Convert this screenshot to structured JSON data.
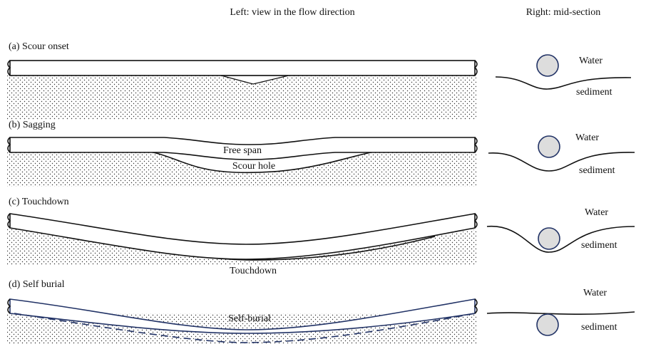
{
  "headers": {
    "left": "Left: view in the flow direction",
    "right": "Right: mid-section"
  },
  "panels": [
    {
      "label": "(a) Scour onset",
      "water": "Water",
      "sediment": "sediment"
    },
    {
      "label": "(b) Sagging",
      "water": "Water",
      "sediment": "sediment",
      "annotations": [
        "Free span",
        "Scour hole"
      ]
    },
    {
      "label": "(c) Touchdown",
      "water": "Water",
      "sediment": "sediment",
      "annotations": [
        "Touchdown"
      ]
    },
    {
      "label": "(d) Self burial",
      "water": "Water",
      "sediment": "sediment",
      "annotations": [
        "Self-burial"
      ]
    }
  ]
}
